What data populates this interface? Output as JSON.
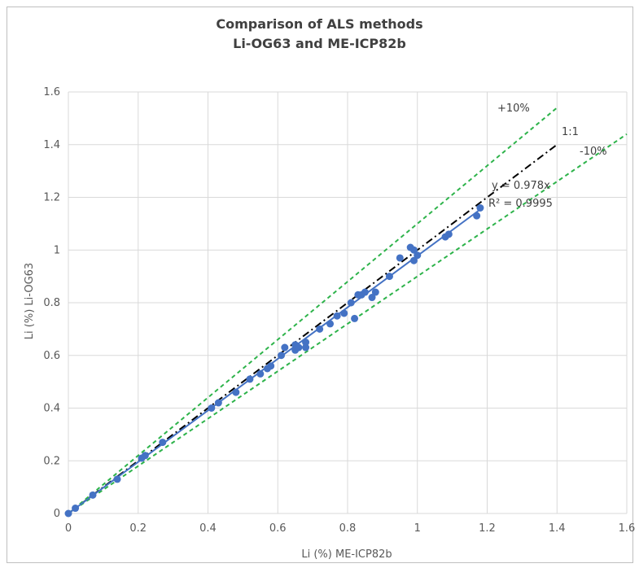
{
  "chart_data": {
    "type": "scatter",
    "title": "Comparison of ALS methods",
    "subtitle": "Li-OG63 and ME-ICP82b",
    "xlabel": "Li (%) ME-ICP82b",
    "ylabel": "Li (%) Li-OG63",
    "xlim": [
      0,
      1.6
    ],
    "ylim": [
      0,
      1.6
    ],
    "xticks": [
      "0",
      "0.2",
      "0.4",
      "0.6",
      "0.8",
      "1",
      "1.2",
      "1.4",
      "1.6"
    ],
    "yticks": [
      "0",
      "0.2",
      "0.4",
      "0.6",
      "0.8",
      "1",
      "1.2",
      "1.4",
      "1.6"
    ],
    "grid": true,
    "colors": {
      "points": "#4472c4",
      "trendline": "#4472c4",
      "one_to_one": "#000000",
      "bounds": "#2db34a",
      "grid": "#d9d9d9"
    },
    "series": [
      {
        "x": [
          0.0,
          0.02,
          0.07,
          0.14,
          0.21,
          0.22,
          0.27,
          0.41,
          0.43,
          0.48,
          0.52,
          0.55,
          0.57,
          0.58,
          0.61,
          0.62,
          0.65,
          0.65,
          0.66,
          0.68,
          0.68,
          0.72,
          0.75,
          0.77,
          0.79,
          0.81,
          0.82,
          0.83,
          0.84,
          0.85,
          0.87,
          0.88,
          0.92,
          0.95,
          0.98,
          0.99,
          0.99,
          1.0,
          1.08,
          1.09,
          1.17,
          1.18
        ],
        "y": [
          0.0,
          0.02,
          0.07,
          0.13,
          0.21,
          0.22,
          0.27,
          0.4,
          0.42,
          0.46,
          0.51,
          0.53,
          0.55,
          0.56,
          0.6,
          0.63,
          0.62,
          0.64,
          0.63,
          0.63,
          0.65,
          0.7,
          0.72,
          0.75,
          0.76,
          0.8,
          0.74,
          0.83,
          0.83,
          0.84,
          0.82,
          0.84,
          0.9,
          0.97,
          1.01,
          1.0,
          0.96,
          0.98,
          1.05,
          1.06,
          1.13,
          1.16
        ]
      }
    ],
    "trendline": {
      "slope": 0.978,
      "x_range": [
        0,
        1.18
      ],
      "equation": "y = 0.978x",
      "r2_label": "R² = 0.9995"
    },
    "reference_lines": [
      {
        "label": "1:1",
        "slope": 1.0,
        "x_range": [
          0,
          1.4
        ],
        "style": "dash-dot"
      },
      {
        "label": "+10%",
        "slope": 1.1,
        "x_range": [
          0,
          1.4
        ],
        "style": "dashed"
      },
      {
        "label": "-10%",
        "slope": 0.9,
        "x_range": [
          0,
          1.6
        ],
        "style": "dashed"
      }
    ]
  }
}
